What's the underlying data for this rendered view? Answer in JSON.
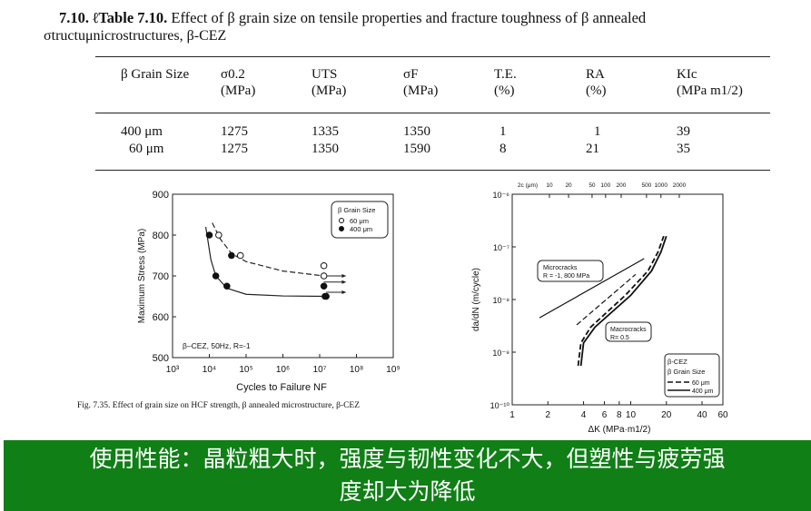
{
  "caption": {
    "label": "7.10. ℓTable 7.10.",
    "text": " Effect of β grain size on tensile properties and fracture toughness of β annealed",
    "line2": "σtructuμnicrostructures, β-CEZ"
  },
  "table": {
    "headers": [
      [
        "β Grain Size",
        ""
      ],
      [
        "σ0.2",
        "(MPa)"
      ],
      [
        "UTS",
        "(MPa)"
      ],
      [
        "σF",
        "(MPa)"
      ],
      [
        "T.E.",
        "(%)"
      ],
      [
        "RA",
        "(%)"
      ],
      [
        "KIc",
        "(MPa m1/2)"
      ]
    ],
    "rows": [
      [
        "400 μm",
        "1275",
        "1335",
        "1350",
        "1",
        "1",
        "39"
      ],
      [
        "60 μm",
        "1275",
        "1350",
        "1590",
        "8",
        "21",
        "35"
      ]
    ]
  },
  "chart_data": [
    {
      "type": "scatter",
      "xlabel": "Cycles to Failure NF",
      "ylabel": "Maximum Stress (MPa)",
      "xscale": "log",
      "xlim": [
        1000,
        1000000000
      ],
      "ylim": [
        500,
        900
      ],
      "xticks": [
        "10³",
        "10⁴",
        "10⁵",
        "10⁶",
        "10⁷",
        "10⁸",
        "10⁹"
      ],
      "yticks": [
        "500",
        "600",
        "700",
        "800",
        "900"
      ],
      "legend": {
        "title": "β Grain Size",
        "placement": "top-right"
      },
      "annotation": "β–CEZ, 50Hz, R=-1",
      "series": [
        {
          "name": "60 μm",
          "marker": "open-circle",
          "x": [
            18000,
            70000,
            13000000,
            13000000
          ],
          "y": [
            800,
            750,
            725,
            700
          ]
        },
        {
          "name": "400 μm",
          "marker": "filled-circle",
          "x": [
            10000,
            15000,
            30000,
            40000,
            13000000,
            14000000,
            15000000
          ],
          "y": [
            800,
            700,
            675,
            750,
            675,
            650,
            650
          ]
        }
      ],
      "fits": [
        {
          "style": "dashed",
          "x": [
            12000,
            20000,
            40000,
            100000,
            1000000,
            13000000
          ],
          "y": [
            830,
            790,
            755,
            735,
            712,
            700
          ]
        },
        {
          "style": "solid",
          "x": [
            8000,
            11000,
            15000,
            30000,
            100000,
            1000000,
            15000000
          ],
          "y": [
            820,
            740,
            700,
            670,
            655,
            651,
            650
          ]
        }
      ],
      "runouts": [
        {
          "x": 13000000,
          "y": 700
        },
        {
          "x": 13000000,
          "y": 685
        },
        {
          "x": 15000000,
          "y": 660
        }
      ],
      "figure_caption": "Fig. 7.35. Effect of grain size on HCF strength, β annealed microstructure, β-CEZ"
    },
    {
      "type": "line",
      "xlabel": "ΔK (MPa·m1/2)",
      "ylabel": "da/dN (m/cycle)",
      "xscale": "log",
      "yscale": "log",
      "xlim": [
        1,
        60
      ],
      "ylim": [
        1e-10,
        1e-06
      ],
      "xticks": [
        1,
        2,
        4,
        6,
        8,
        10,
        20,
        40,
        60
      ],
      "yticks": [
        "10⁻¹⁰",
        "10⁻⁹",
        "10⁻⁸",
        "10⁻⁷",
        "10⁻⁶"
      ],
      "top_axis": {
        "label": "2c (μm)",
        "ticks": [
          {
            "label": "10",
            "dk": 2.06
          },
          {
            "label": "20",
            "dk": 2.99
          },
          {
            "label": "50",
            "dk": 4.72
          },
          {
            "label": "100",
            "dk": 6.14
          },
          {
            "label": "200",
            "dk": 8.31
          },
          {
            "label": "500",
            "dk": 13.6
          },
          {
            "label": "1000",
            "dk": 18.0
          },
          {
            "label": "2000",
            "dk": 25.7
          }
        ]
      },
      "annotations": [
        "Microcracks",
        "R = -1, 800 MPa",
        "Macrocracks",
        "R= 0.5"
      ],
      "legend": {
        "lines": [
          "β-CEZ",
          "β Grain Size"
        ],
        "placement": "bottom-right"
      },
      "series": [
        {
          "name": "60 μm",
          "group": "microcracks",
          "style": "dashed",
          "x": [
            3.5,
            11
          ],
          "y": [
            3.3e-09,
            3e-08
          ]
        },
        {
          "name": "400 μm",
          "group": "microcracks",
          "style": "solid",
          "x": [
            1.7,
            13
          ],
          "y": [
            4.5e-09,
            6e-08
          ]
        },
        {
          "name": "60 μm",
          "group": "macrocracks",
          "style": "dashed",
          "x": [
            3.6,
            3.8,
            4.6,
            9,
            14,
            17,
            19
          ],
          "y": [
            5.5e-10,
            1.5e-09,
            3e-09,
            1.2e-08,
            3.5e-08,
            8e-08,
            1.6e-07
          ]
        },
        {
          "name": "400 μm",
          "group": "macrocracks",
          "style": "solid",
          "x": [
            3.8,
            4.0,
            5,
            10,
            15,
            18,
            20
          ],
          "y": [
            5.5e-10,
            1.5e-09,
            3e-09,
            1.2e-08,
            3.5e-08,
            8e-08,
            1.6e-07
          ]
        }
      ]
    }
  ],
  "banner": {
    "line1": "使用性能：晶粒粗大时，强度与韧性变化不大，但塑性与疲劳强",
    "line2": "度却大为降低"
  },
  "colors": {
    "banner": "#0f7f16",
    "banner_text": "#ffffff"
  }
}
